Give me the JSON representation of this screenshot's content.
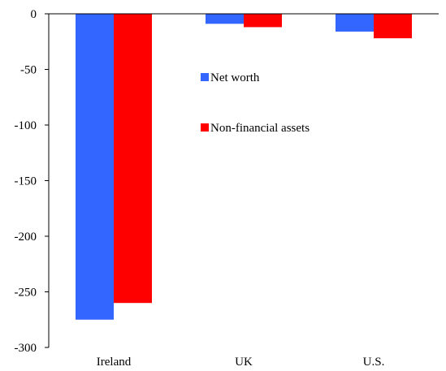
{
  "chart_data": {
    "type": "bar",
    "title": "",
    "xlabel": "",
    "ylabel": "",
    "categories": [
      "Ireland",
      "UK",
      "U.S."
    ],
    "series": [
      {
        "name": "Net worth",
        "values": [
          -275,
          -9,
          -16
        ],
        "color": "#3366ff"
      },
      {
        "name": "Non-financial assets",
        "values": [
          -260,
          -12,
          -22
        ],
        "color": "#ff0000"
      }
    ],
    "ylim": [
      -300,
      0
    ],
    "yticks": [
      "0",
      "-50",
      "-100",
      "-150",
      "-200",
      "-250",
      "-300"
    ],
    "ytick_values": [
      0,
      -50,
      -100,
      -150,
      -200,
      -250,
      -300
    ],
    "grid": false,
    "legend_position": "center-right inside plot"
  }
}
